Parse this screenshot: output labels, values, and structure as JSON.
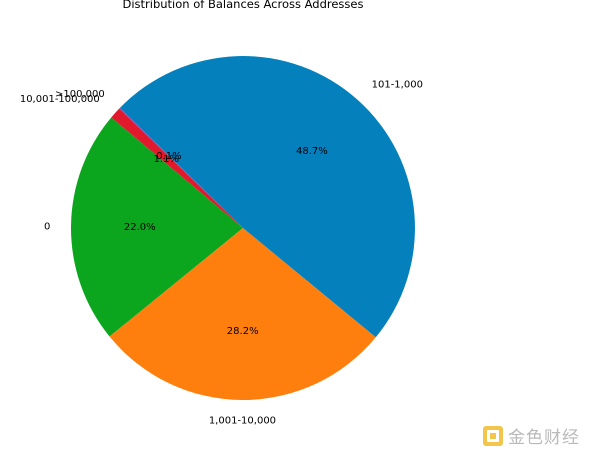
{
  "chart_data": {
    "type": "pie",
    "title": "Distribution of Balances Across Addresses",
    "slices": [
      {
        "label": "0",
        "pct": "22.0%",
        "value": 22.0,
        "color": "#0ba61e"
      },
      {
        "label": "1,001-10,000",
        "pct": "28.2%",
        "value": 28.2,
        "color": "#ff7f0e"
      },
      {
        "label": "101-1,000",
        "pct": "48.7%",
        "value": 48.7,
        "color": "#0480bd"
      },
      {
        "label": ">100,000",
        "pct": "0.1%",
        "value": 0.1,
        "color": "#7f4fb5"
      },
      {
        "label": "10,001-100,000",
        "pct": "1.1%",
        "value": 1.1,
        "color": "#e0192c"
      }
    ],
    "start_angle_deg": 140,
    "direction": "counterclockwise"
  },
  "watermark": {
    "text": "金色财经"
  }
}
